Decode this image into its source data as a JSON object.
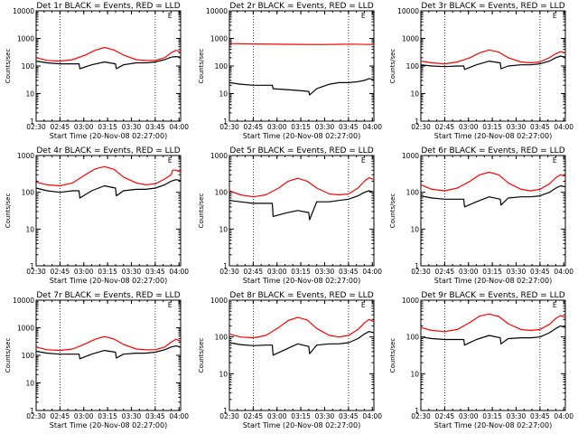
{
  "figure": {
    "shared": {
      "xlabel": "Start Time (20-Nov-08 02:27:00)",
      "ylabel": "Counts/sec",
      "x_tick_labels": [
        "02:30",
        "02:45",
        "03:00",
        "03:15",
        "03:30",
        "03:45",
        "04:00"
      ],
      "y_tick_labels": [
        "1",
        "10",
        "100",
        "1000",
        "10000"
      ],
      "annotation": "E",
      "colors": {
        "events": "#000000",
        "lld": "#ff0000",
        "axes": "#000000"
      }
    }
  },
  "chart_data": [
    {
      "type": "line",
      "title": "Det 1r BLACK = Events, RED = LLD",
      "x_unit": "minutes since 02:27:00",
      "xlim": [
        3,
        94
      ],
      "ylim": [
        1,
        10000
      ],
      "y_scale": "log",
      "vlines": [
        18,
        78
      ],
      "series": [
        {
          "name": "BLACK = Events",
          "color": "#000000",
          "x": [
            3,
            10,
            18,
            26,
            30,
            30.5,
            38,
            46,
            53,
            53.5,
            58,
            66,
            72,
            78,
            84,
            88,
            91,
            94
          ],
          "values": [
            150,
            130,
            120,
            120,
            120,
            80,
            110,
            140,
            120,
            80,
            110,
            130,
            130,
            140,
            170,
            210,
            220,
            210
          ]
        },
        {
          "name": "RED = LLD",
          "color": "#ff0000",
          "x": [
            3,
            10,
            18,
            26,
            34,
            40,
            46,
            52,
            58,
            66,
            72,
            78,
            84,
            88,
            91,
            94
          ],
          "values": [
            200,
            160,
            150,
            170,
            250,
            370,
            470,
            380,
            250,
            170,
            160,
            160,
            200,
            300,
            370,
            330
          ]
        }
      ]
    },
    {
      "type": "line",
      "title": "Det 2r BLACK = Events, RED = LLD",
      "x_unit": "minutes since 02:27:00",
      "xlim": [
        3,
        94
      ],
      "ylim": [
        1,
        10000
      ],
      "y_scale": "log",
      "vlines": [
        18,
        78
      ],
      "series": [
        {
          "name": "BLACK = Events",
          "color": "#000000",
          "x": [
            3,
            10,
            18,
            26,
            30,
            30.5,
            38,
            46,
            53,
            53.5,
            58,
            66,
            72,
            78,
            84,
            88,
            91,
            94
          ],
          "values": [
            25,
            22,
            20,
            20,
            20,
            15,
            14,
            13,
            12,
            9,
            15,
            22,
            25,
            25,
            27,
            30,
            35,
            32
          ]
        },
        {
          "name": "RED = LLD",
          "color": "#ff0000",
          "x": [
            3,
            20,
            40,
            60,
            80,
            94
          ],
          "values": [
            650,
            630,
            610,
            600,
            620,
            600
          ]
        }
      ]
    },
    {
      "type": "line",
      "title": "Det 3r BLACK = Events, RED = LLD",
      "x_unit": "minutes since 02:27:00",
      "xlim": [
        3,
        94
      ],
      "ylim": [
        1,
        10000
      ],
      "y_scale": "log",
      "vlines": [
        18,
        78
      ],
      "series": [
        {
          "name": "BLACK = Events",
          "color": "#000000",
          "x": [
            3,
            10,
            18,
            26,
            30,
            30.5,
            38,
            46,
            53,
            53.5,
            58,
            66,
            72,
            78,
            84,
            88,
            91,
            94
          ],
          "values": [
            110,
            100,
            95,
            100,
            100,
            75,
            110,
            150,
            130,
            80,
            100,
            110,
            110,
            120,
            150,
            200,
            230,
            210
          ]
        },
        {
          "name": "RED = LLD",
          "color": "#ff0000",
          "x": [
            3,
            10,
            18,
            26,
            34,
            40,
            46,
            52,
            58,
            66,
            72,
            78,
            84,
            88,
            91,
            94
          ],
          "values": [
            150,
            130,
            120,
            140,
            200,
            300,
            380,
            320,
            200,
            140,
            130,
            140,
            200,
            280,
            330,
            300
          ]
        }
      ]
    },
    {
      "type": "line",
      "title": "Det 4r BLACK = Events, RED = LLD",
      "x_unit": "minutes since 02:27:00",
      "xlim": [
        3,
        94
      ],
      "ylim": [
        1,
        1000
      ],
      "y_scale": "log",
      "vlines": [
        18,
        78
      ],
      "series": [
        {
          "name": "BLACK = Events",
          "color": "#000000",
          "x": [
            3,
            10,
            18,
            26,
            30,
            30.5,
            38,
            46,
            53,
            53.5,
            58,
            66,
            72,
            78,
            84,
            88,
            91,
            94
          ],
          "values": [
            130,
            110,
            100,
            110,
            110,
            70,
            110,
            150,
            130,
            80,
            110,
            120,
            120,
            130,
            160,
            200,
            220,
            210
          ]
        },
        {
          "name": "RED = LLD",
          "color": "#ff0000",
          "x": [
            3,
            10,
            18,
            26,
            34,
            40,
            46,
            52,
            58,
            66,
            72,
            78,
            84,
            88,
            89,
            91,
            94
          ],
          "values": [
            190,
            160,
            150,
            180,
            300,
            430,
            500,
            420,
            260,
            180,
            160,
            170,
            230,
            300,
            400,
            400,
            350
          ]
        }
      ]
    },
    {
      "type": "line",
      "title": "Det 5r BLACK = Events, RED = LLD",
      "x_unit": "minutes since 02:27:00",
      "xlim": [
        3,
        94
      ],
      "ylim": [
        1,
        1000
      ],
      "y_scale": "log",
      "vlines": [
        18,
        78
      ],
      "series": [
        {
          "name": "BLACK = Events",
          "color": "#000000",
          "x": [
            3,
            10,
            18,
            26,
            30,
            30.5,
            38,
            46,
            53,
            53.5,
            58,
            66,
            72,
            78,
            84,
            88,
            91,
            94
          ],
          "values": [
            60,
            55,
            50,
            50,
            50,
            22,
            27,
            32,
            28,
            18,
            55,
            55,
            60,
            65,
            80,
            100,
            110,
            100
          ]
        },
        {
          "name": "RED = LLD",
          "color": "#ff0000",
          "x": [
            3,
            10,
            18,
            26,
            34,
            40,
            46,
            52,
            58,
            66,
            72,
            78,
            84,
            88,
            91,
            94
          ],
          "values": [
            110,
            85,
            75,
            85,
            130,
            200,
            240,
            200,
            130,
            90,
            85,
            90,
            130,
            200,
            250,
            220
          ]
        }
      ]
    },
    {
      "type": "line",
      "title": "Det 6r BLACK = Events, RED = LLD",
      "x_unit": "minutes since 02:27:00",
      "xlim": [
        3,
        94
      ],
      "ylim": [
        1,
        1000
      ],
      "y_scale": "log",
      "vlines": [
        18,
        78
      ],
      "series": [
        {
          "name": "BLACK = Events",
          "color": "#000000",
          "x": [
            3,
            10,
            18,
            26,
            30,
            30.5,
            38,
            46,
            53,
            53.5,
            58,
            66,
            72,
            78,
            84,
            88,
            91,
            94
          ],
          "values": [
            80,
            70,
            65,
            65,
            65,
            40,
            55,
            75,
            65,
            45,
            70,
            75,
            75,
            80,
            100,
            130,
            150,
            140
          ]
        },
        {
          "name": "RED = LLD",
          "color": "#ff0000",
          "x": [
            3,
            10,
            18,
            26,
            34,
            40,
            46,
            52,
            58,
            66,
            72,
            78,
            84,
            88,
            91,
            94
          ],
          "values": [
            160,
            120,
            110,
            130,
            200,
            300,
            350,
            300,
            180,
            120,
            110,
            120,
            170,
            250,
            300,
            270
          ]
        }
      ]
    },
    {
      "type": "line",
      "title": "Det 7r BLACK = Events, RED = LLD",
      "x_unit": "minutes since 02:27:00",
      "xlim": [
        3,
        94
      ],
      "ylim": [
        1,
        10000
      ],
      "y_scale": "log",
      "vlines": [
        18,
        78
      ],
      "series": [
        {
          "name": "BLACK = Events",
          "color": "#000000",
          "x": [
            3,
            10,
            18,
            26,
            30,
            30.5,
            38,
            46,
            53,
            53.5,
            58,
            66,
            72,
            78,
            84,
            88,
            91,
            94
          ],
          "values": [
            140,
            120,
            110,
            110,
            110,
            75,
            110,
            150,
            130,
            80,
            110,
            120,
            120,
            130,
            160,
            200,
            220,
            200
          ]
        },
        {
          "name": "RED = LLD",
          "color": "#ff0000",
          "x": [
            3,
            10,
            18,
            26,
            34,
            40,
            46,
            52,
            58,
            66,
            72,
            78,
            84,
            88,
            91,
            94
          ],
          "values": [
            200,
            160,
            150,
            170,
            260,
            380,
            480,
            390,
            250,
            170,
            160,
            160,
            200,
            300,
            380,
            330
          ]
        }
      ]
    },
    {
      "type": "line",
      "title": "Det 8r BLACK = Events, RED = LLD",
      "x_unit": "minutes since 02:27:00",
      "xlim": [
        3,
        94
      ],
      "ylim": [
        1,
        1000
      ],
      "y_scale": "log",
      "vlines": [
        18,
        78
      ],
      "series": [
        {
          "name": "BLACK = Events",
          "color": "#000000",
          "x": [
            3,
            10,
            18,
            26,
            30,
            30.5,
            38,
            46,
            53,
            53.5,
            58,
            66,
            72,
            78,
            84,
            88,
            91,
            94
          ],
          "values": [
            70,
            62,
            58,
            60,
            60,
            32,
            45,
            65,
            55,
            35,
            60,
            65,
            65,
            70,
            90,
            120,
            140,
            130
          ]
        },
        {
          "name": "RED = LLD",
          "color": "#ff0000",
          "x": [
            3,
            10,
            18,
            26,
            34,
            40,
            46,
            52,
            58,
            66,
            72,
            78,
            84,
            88,
            91,
            94
          ],
          "values": [
            120,
            100,
            95,
            110,
            180,
            280,
            340,
            290,
            170,
            110,
            100,
            110,
            160,
            240,
            300,
            260
          ]
        }
      ]
    },
    {
      "type": "line",
      "title": "Det 9r BLACK = Events, RED = LLD",
      "x_unit": "minutes since 02:27:00",
      "xlim": [
        3,
        94
      ],
      "ylim": [
        1,
        1000
      ],
      "y_scale": "log",
      "vlines": [
        18,
        78
      ],
      "series": [
        {
          "name": "BLACK = Events",
          "color": "#000000",
          "x": [
            3,
            10,
            18,
            26,
            30,
            30.5,
            38,
            46,
            53,
            53.5,
            58,
            66,
            72,
            78,
            84,
            88,
            91,
            94
          ],
          "values": [
            100,
            90,
            85,
            85,
            85,
            60,
            85,
            110,
            95,
            65,
            90,
            95,
            95,
            100,
            130,
            170,
            200,
            180
          ]
        },
        {
          "name": "RED = LLD",
          "color": "#ff0000",
          "x": [
            3,
            10,
            18,
            26,
            34,
            40,
            46,
            52,
            58,
            66,
            72,
            78,
            84,
            88,
            91,
            94
          ],
          "values": [
            180,
            150,
            140,
            160,
            250,
            370,
            420,
            360,
            230,
            160,
            150,
            160,
            220,
            320,
            380,
            340
          ]
        }
      ]
    }
  ]
}
